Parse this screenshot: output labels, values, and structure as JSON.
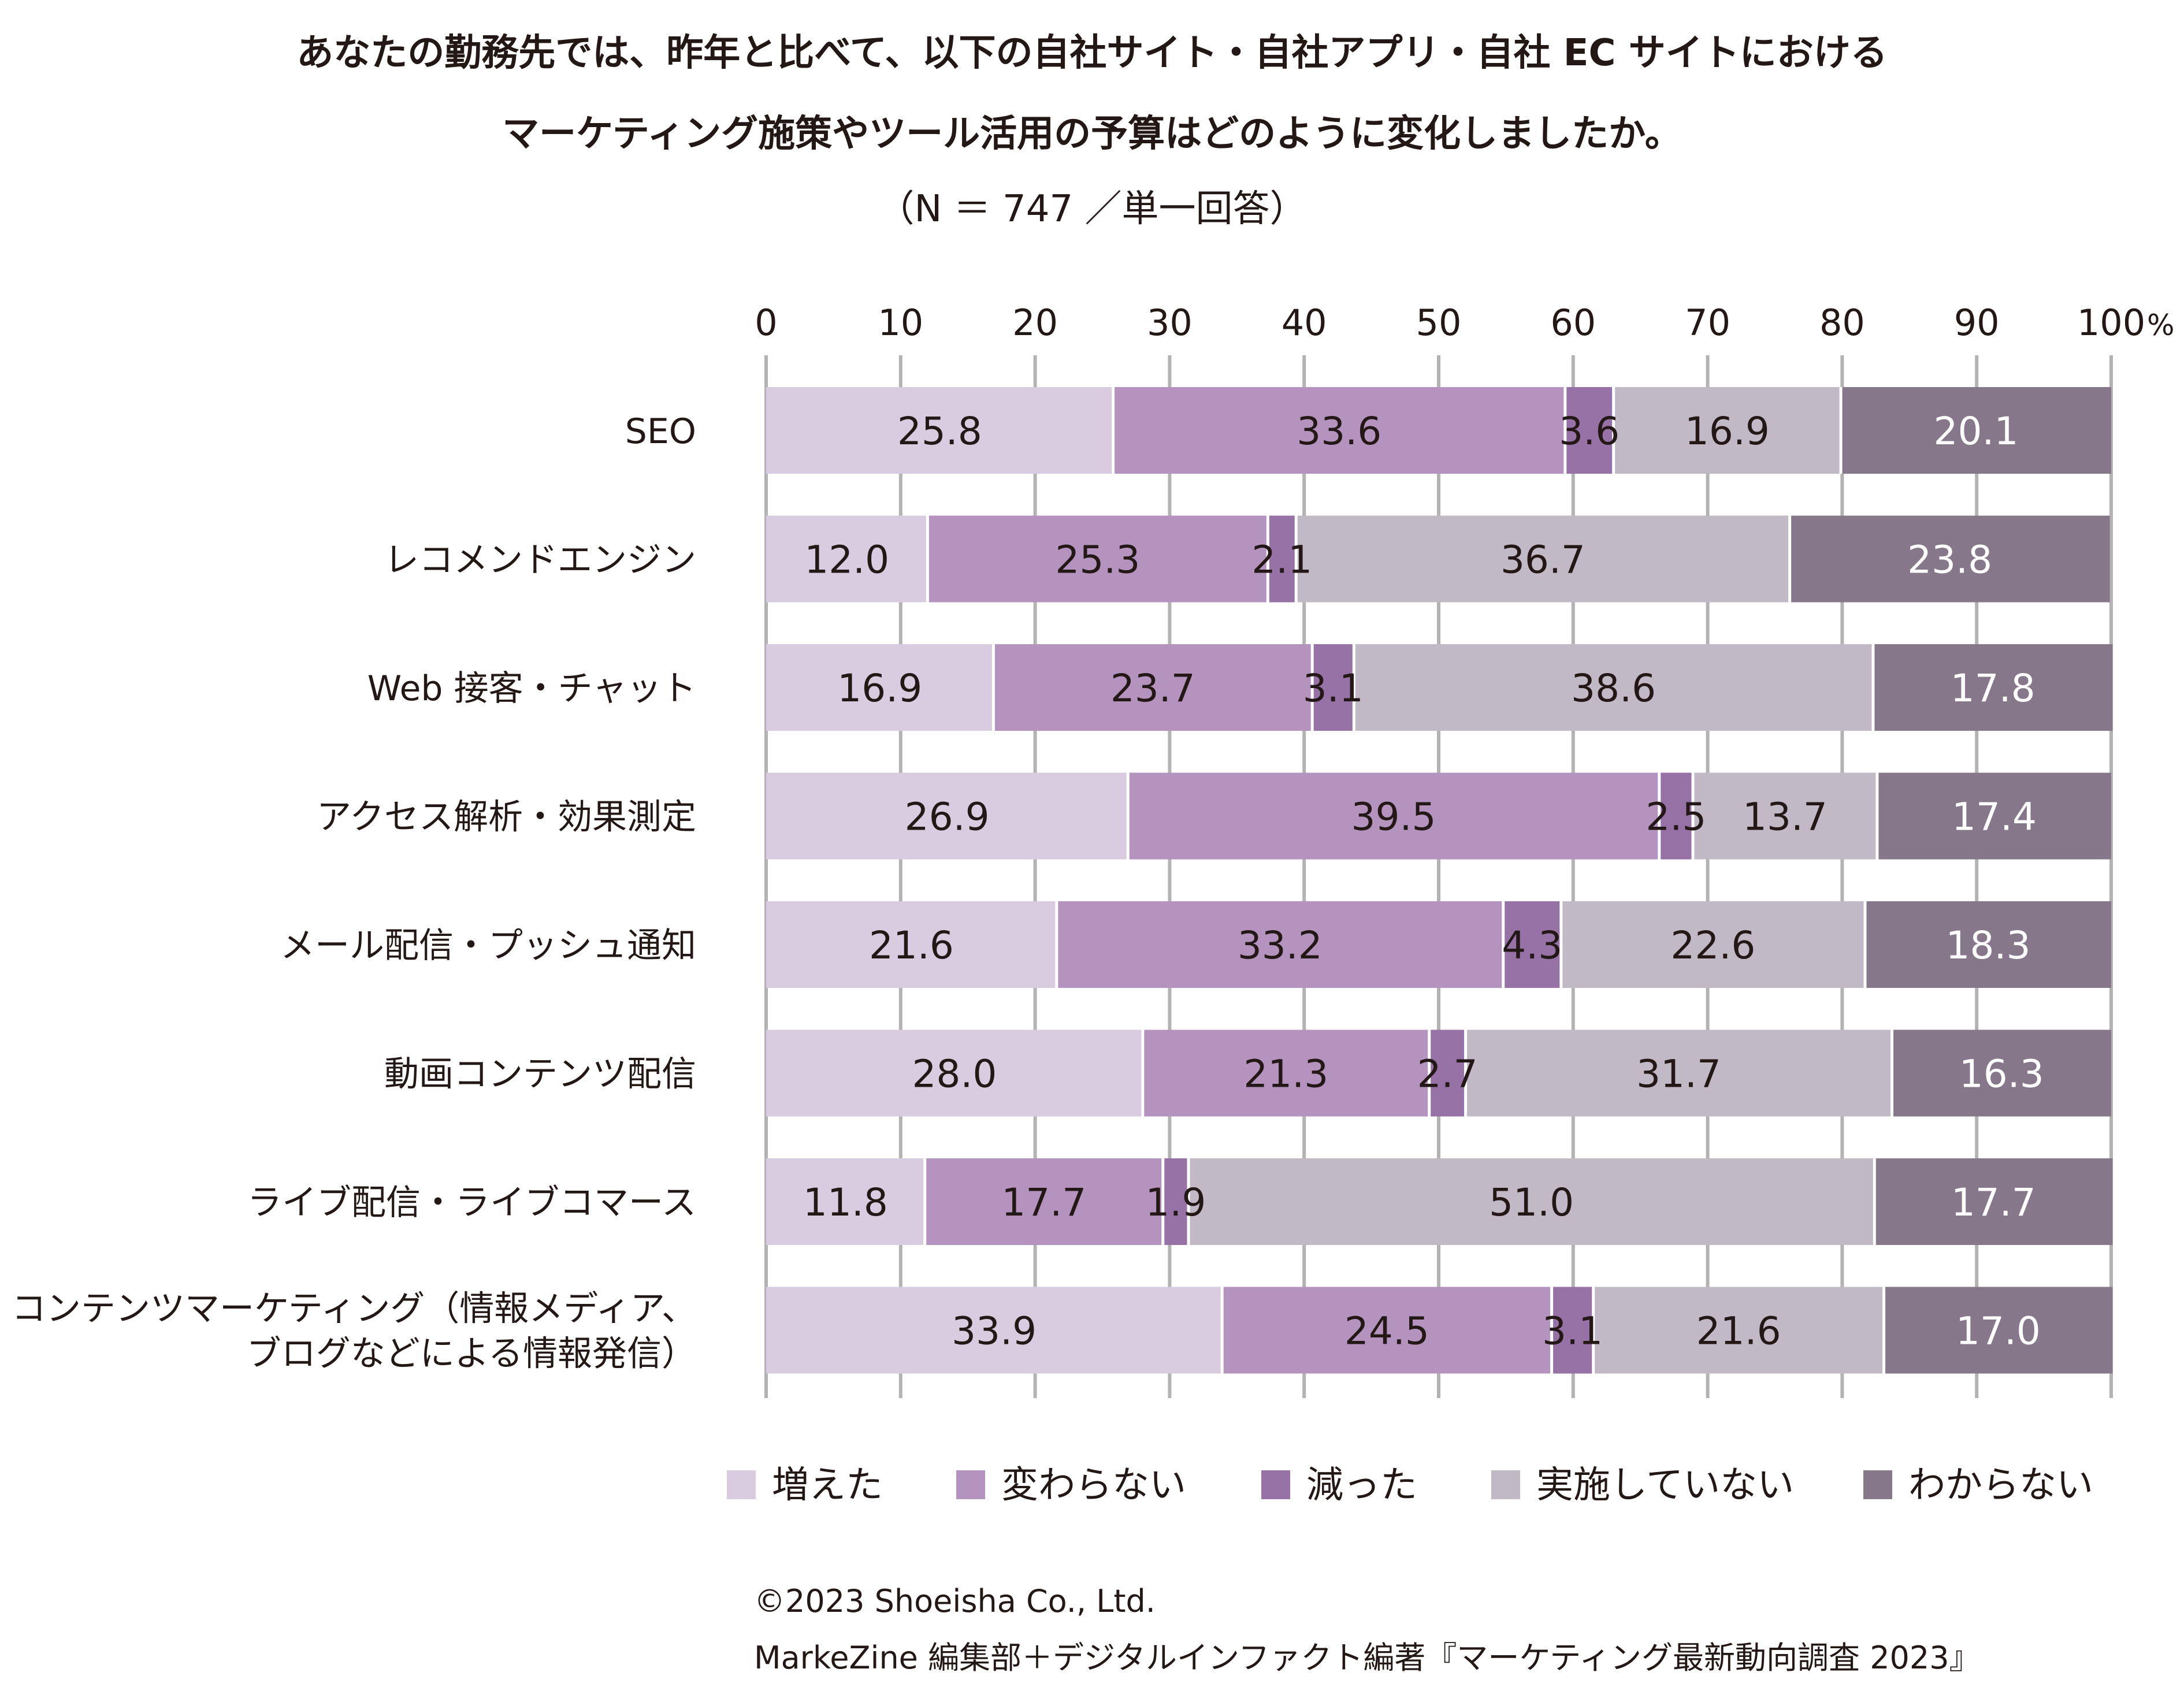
{
  "title_line1": "あなたの勤務先では、昨年と比べて、以下の自社サイト・自社アプリ・自社 EC サイトにおける",
  "title_line2": "マーケティング施策やツール活用の予算はどのように変化しましたか。",
  "subtitle": "（N ＝ 747 ／単一回答）",
  "colors": {
    "増えた": "#d9cce0",
    "変わらない": "#b493bf",
    "減った": "#9672a6",
    "実施していない": "#c2b9c6",
    "わからない": "#87778a",
    "gridline": "#b3b3b3",
    "separator": "#ffffff"
  },
  "chart_data": {
    "type": "bar",
    "orientation": "horizontal",
    "stacked": true,
    "title": "あなたの勤務先では、昨年と比べて、以下の自社サイト・自社アプリ・自社 EC サイトにおけるマーケティング施策やツール活用の予算はどのように変化しましたか。",
    "subtitle": "（N ＝ 747 ／単一回答）",
    "xlim": [
      0,
      100
    ],
    "x_ticks": [
      "0",
      "10",
      "20",
      "30",
      "40",
      "50",
      "60",
      "70",
      "80",
      "90",
      "100"
    ],
    "x_unit": "%",
    "grid": true,
    "legend_position": "bottom",
    "categories": [
      [
        "SEO"
      ],
      [
        "レコメンドエンジン"
      ],
      [
        "Web 接客・チャット"
      ],
      [
        "アクセス解析・効果測定"
      ],
      [
        "メール配信・プッシュ通知"
      ],
      [
        "動画コンテンツ配信"
      ],
      [
        "ライブ配信・ライブコマース"
      ],
      [
        "コンテンツマーケティング（情報メディア、",
        "ブログなどによる情報発信）"
      ]
    ],
    "series": [
      {
        "name": "増えた",
        "values": [
          25.8,
          12.0,
          16.9,
          26.9,
          21.6,
          28.0,
          11.8,
          33.9
        ],
        "labels": [
          "25.8",
          "12.0",
          "16.9",
          "26.9",
          "21.6",
          "28.0",
          "11.8",
          "33.9"
        ]
      },
      {
        "name": "変わらない",
        "values": [
          33.6,
          25.3,
          23.7,
          39.5,
          33.2,
          21.3,
          17.7,
          24.5
        ],
        "labels": [
          "33.6",
          "25.3",
          "23.7",
          "39.5",
          "33.2",
          "21.3",
          "17.7",
          "24.5"
        ]
      },
      {
        "name": "減った",
        "values": [
          3.6,
          2.1,
          3.1,
          2.5,
          4.3,
          2.7,
          1.9,
          3.1
        ],
        "labels": [
          "3.6",
          "2.1",
          "3.1",
          "2.5",
          "4.3",
          "2.7",
          "1.9",
          "3.1"
        ]
      },
      {
        "name": "実施していない",
        "values": [
          16.9,
          36.7,
          38.6,
          13.7,
          22.6,
          31.7,
          51.0,
          21.6
        ],
        "labels": [
          "16.9",
          "36.7",
          "38.6",
          "13.7",
          "22.6",
          "31.7",
          "51.0",
          "21.6"
        ]
      },
      {
        "name": "わからない",
        "values": [
          20.1,
          23.8,
          17.8,
          17.4,
          18.3,
          16.3,
          17.7,
          17.0
        ],
        "labels": [
          "20.1",
          "23.8",
          "17.8",
          "17.4",
          "18.3",
          "16.3",
          "17.7",
          "17.0"
        ]
      }
    ]
  },
  "source_line1": "©2023 Shoeisha Co., Ltd.",
  "source_line2": "MarkeZine 編集部＋デジタルインファクト編著『マーケティング最新動向調査 2023』"
}
